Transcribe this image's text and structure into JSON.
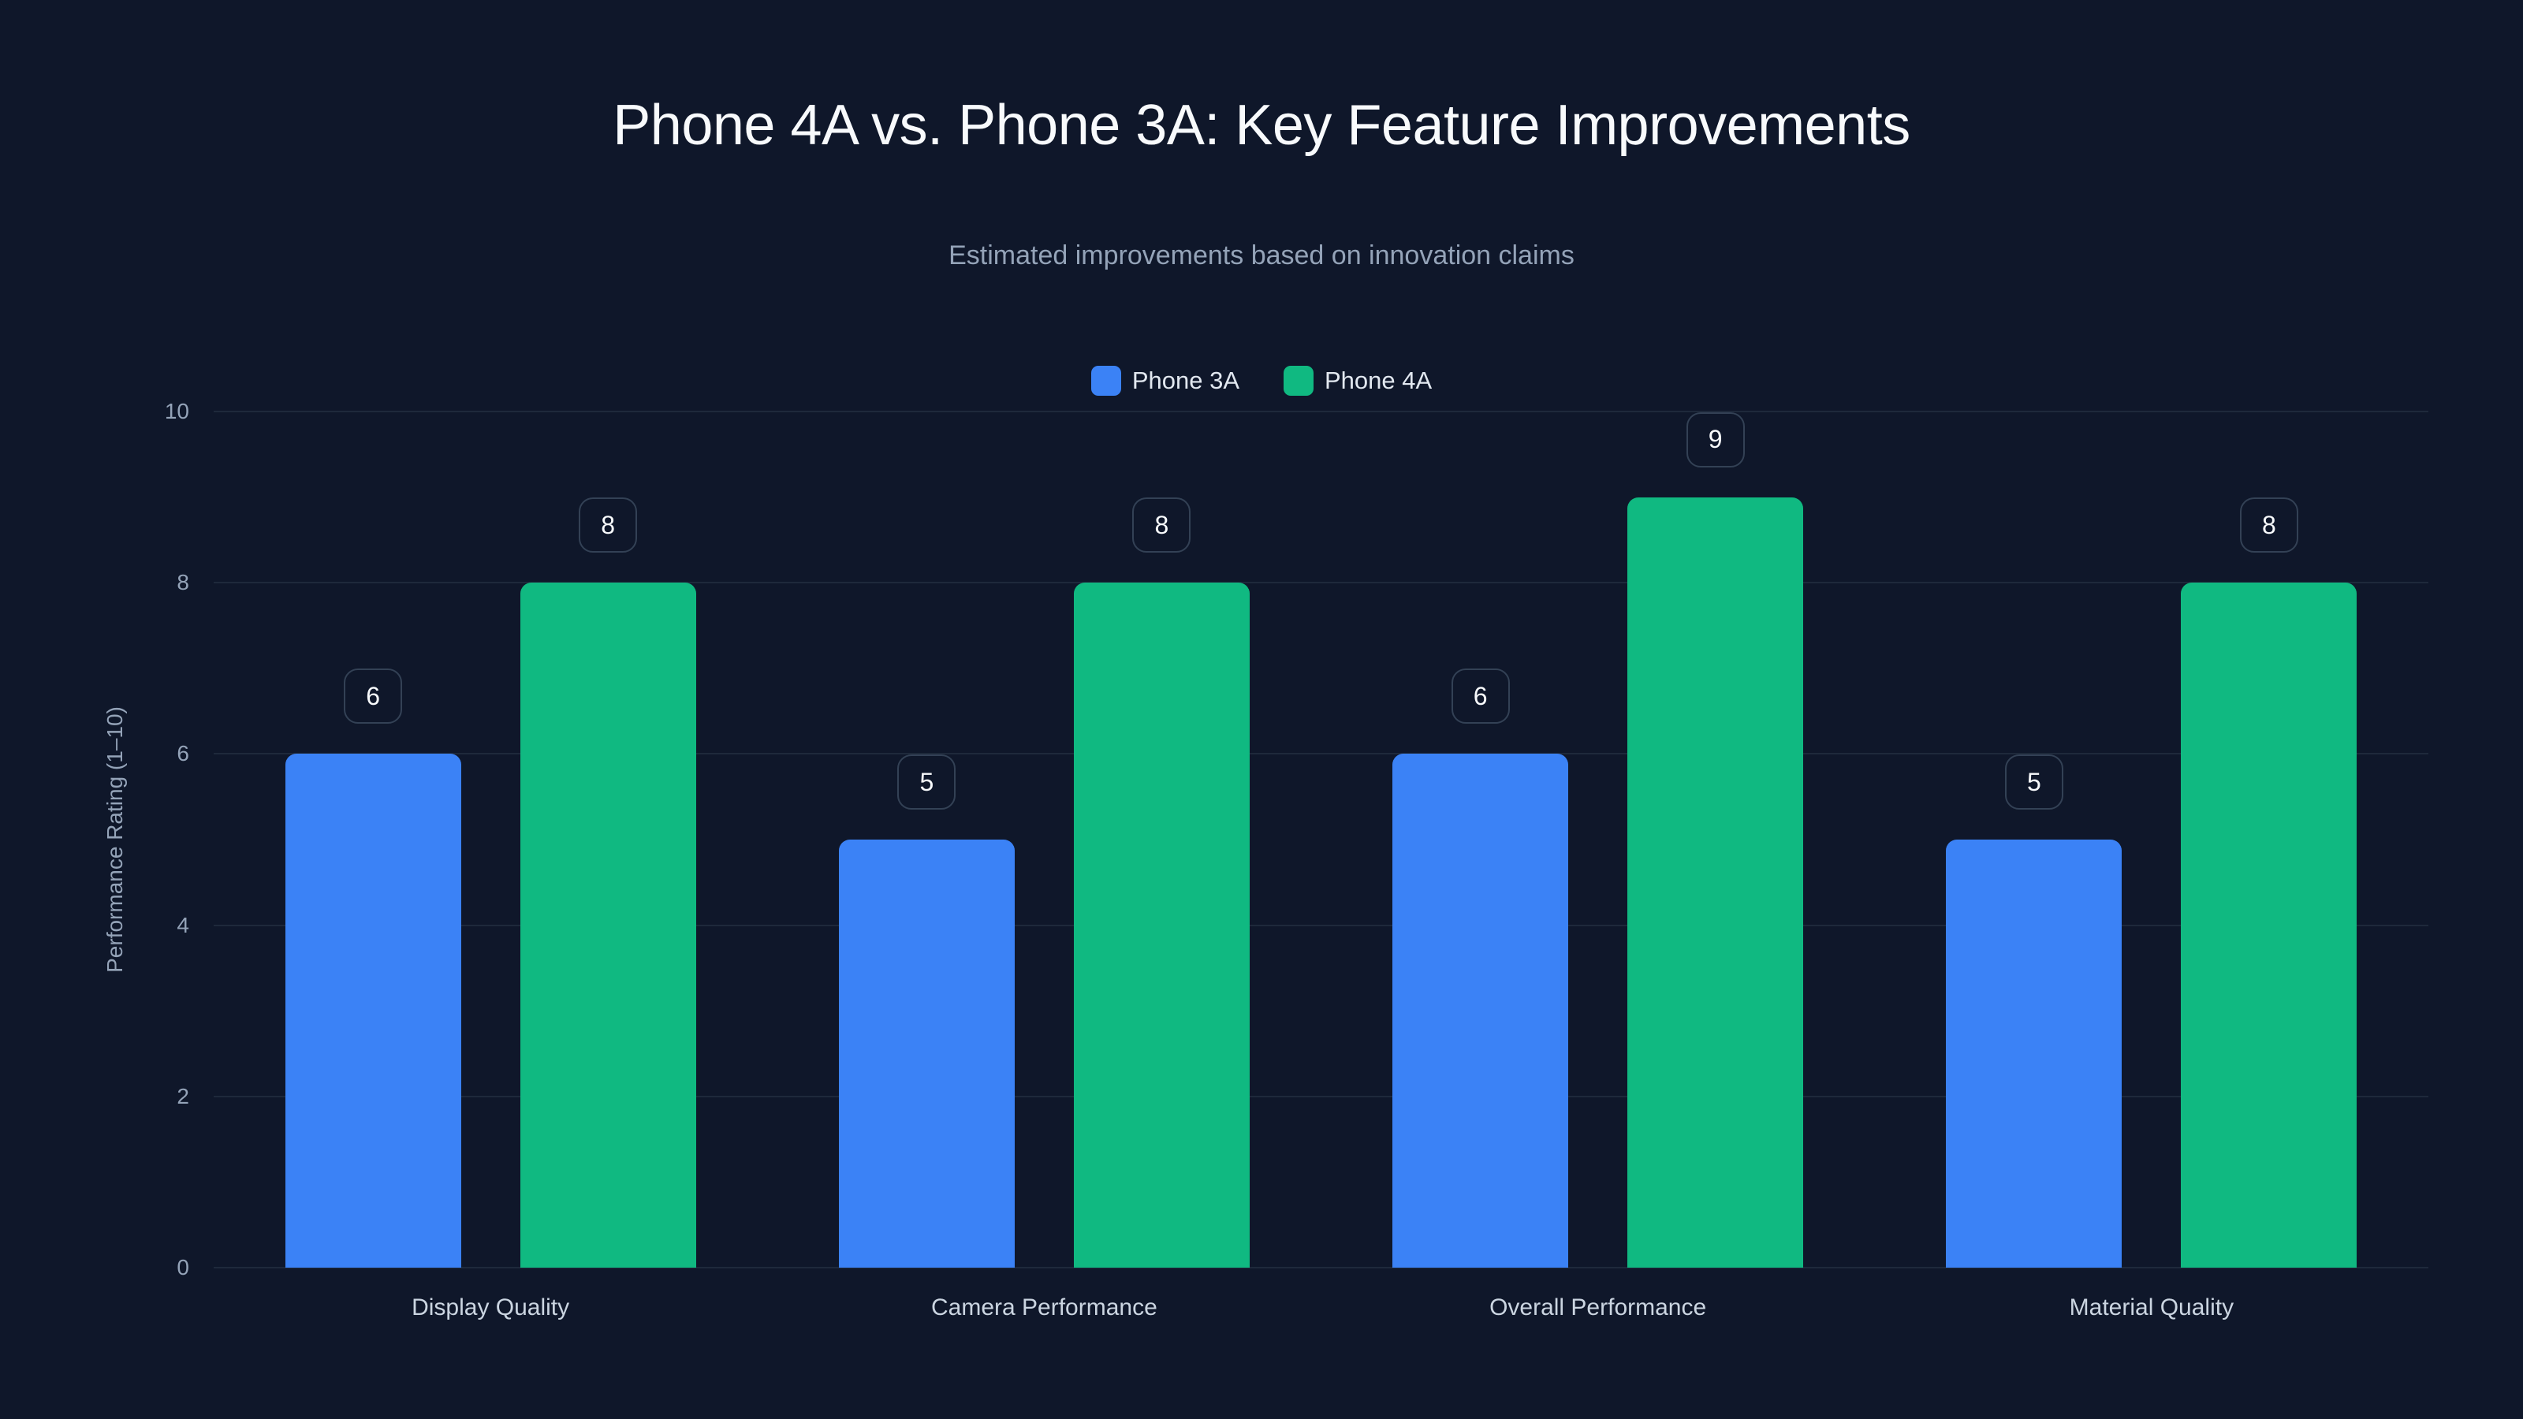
{
  "title": "Phone 4A vs. Phone 3A: Key Feature Improvements",
  "subtitle": "Estimated improvements based on innovation claims",
  "legend": [
    {
      "label": "Phone 3A",
      "color": "#3b82f6"
    },
    {
      "label": "Phone 4A",
      "color": "#10b981"
    }
  ],
  "yaxis": {
    "title": "Performance Rating (1–10)",
    "ticks": [
      "0",
      "2",
      "4",
      "6",
      "8",
      "10"
    ]
  },
  "chart_data": {
    "type": "bar",
    "title": "Phone 4A vs. Phone 3A: Key Feature Improvements",
    "subtitle": "Estimated improvements based on innovation claims",
    "xlabel": "",
    "ylabel": "Performance Rating (1–10)",
    "ylim": [
      0,
      10
    ],
    "yticks": [
      0,
      2,
      4,
      6,
      8,
      10
    ],
    "grid": true,
    "legend_position": "top",
    "categories": [
      "Display Quality",
      "Camera Performance",
      "Overall Performance",
      "Material Quality"
    ],
    "series": [
      {
        "name": "Phone 3A",
        "color": "#3b82f6",
        "values": [
          6,
          5,
          6,
          5
        ]
      },
      {
        "name": "Phone 4A",
        "color": "#10b981",
        "values": [
          8,
          8,
          9,
          8
        ]
      }
    ],
    "data_labels": true
  }
}
